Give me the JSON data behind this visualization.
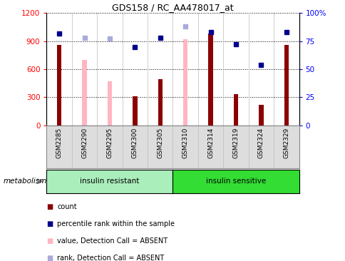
{
  "title": "GDS158 / RC_AA478017_at",
  "categories": [
    "GSM2285",
    "GSM2290",
    "GSM2295",
    "GSM2300",
    "GSM2305",
    "GSM2310",
    "GSM2314",
    "GSM2319",
    "GSM2324",
    "GSM2329"
  ],
  "count_bars": [
    860,
    null,
    null,
    310,
    490,
    null,
    980,
    330,
    220,
    860
  ],
  "value_absent_bars": [
    null,
    700,
    470,
    null,
    null,
    920,
    null,
    null,
    null,
    null
  ],
  "percentile_rank": [
    82,
    null,
    null,
    70,
    78,
    null,
    83,
    72,
    54,
    83
  ],
  "rank_absent": [
    null,
    78,
    77,
    null,
    null,
    88,
    null,
    null,
    null,
    null
  ],
  "ylim_left": [
    0,
    1200
  ],
  "ylim_right": [
    0,
    100
  ],
  "yticks_left": [
    0,
    300,
    600,
    900,
    1200
  ],
  "yticks_right": [
    0,
    25,
    50,
    75,
    100
  ],
  "yticklabels_right": [
    "0",
    "25",
    "50",
    "75",
    "100%"
  ],
  "bar_color_dark": "#8B0000",
  "bar_color_light": "#FFB6C1",
  "dot_color_dark": "#00008B",
  "dot_color_light": "#AAAADD",
  "group_color_resistant": "#AAEEBB",
  "group_color_sensitive": "#33DD33",
  "legend_labels": [
    "count",
    "percentile rank within the sample",
    "value, Detection Call = ABSENT",
    "rank, Detection Call = ABSENT"
  ],
  "metabolism_label": "metabolism",
  "group_label_resistant": "insulin resistant",
  "group_label_sensitive": "insulin sensitive"
}
